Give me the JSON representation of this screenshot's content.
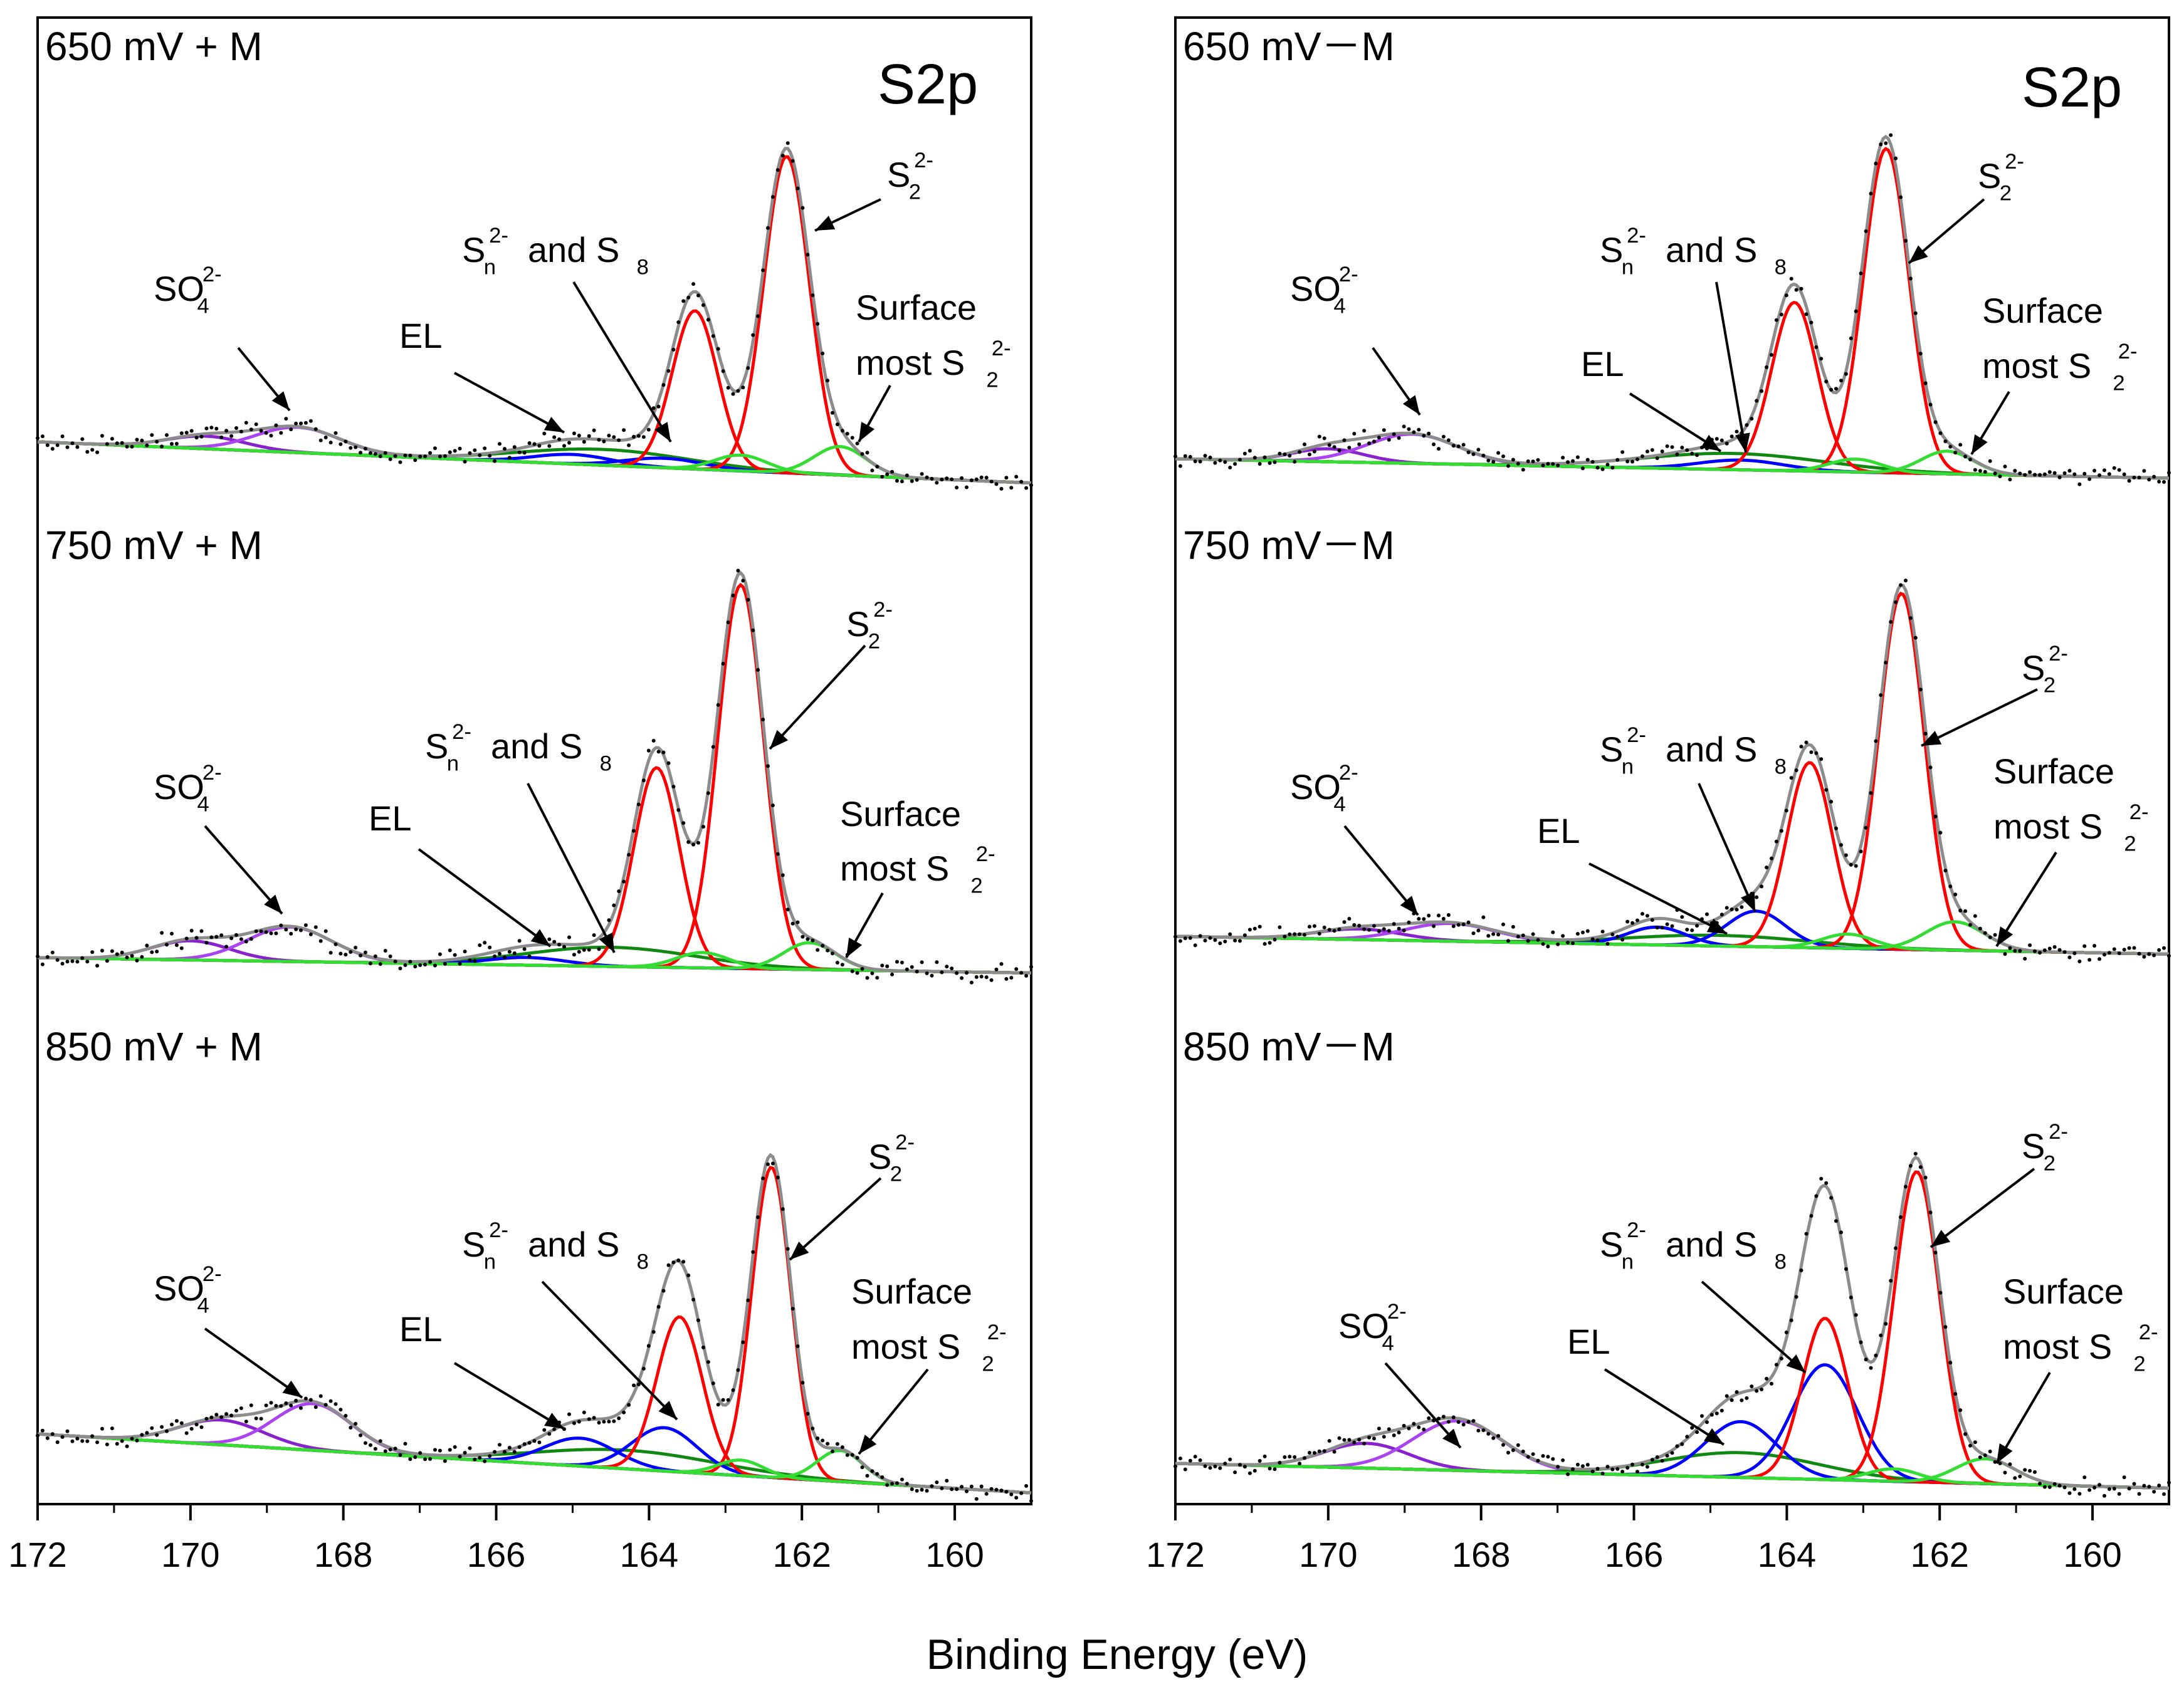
{
  "figure": {
    "xlabel": "Binding Energy (eV)"
  },
  "colors": {
    "envelope": "#8c8c8c",
    "s2": "#ff0000",
    "surface": "#33dd33",
    "sn": "#0000ff",
    "el": "#118811",
    "so4_a": "#8822cc",
    "so4_b": "#aa44ee",
    "sulfate_bg": "#9966bb",
    "background": "#2a6e2a",
    "dots": "#000000",
    "frame": "#000000"
  },
  "label_text": {
    "so4": "SO",
    "so4_sub": "4",
    "so4_sup": "2-",
    "el": "EL",
    "sn": "S",
    "sn_sub": "n",
    "sn_sup": "2-",
    "sn_and": "and S",
    "sn_and_sub": "8",
    "s2": "S",
    "s2_sub": "2",
    "s2_sup": "2-",
    "surface": "Surface",
    "most": "most S",
    "most_sub": "2",
    "most_sup": "2-"
  },
  "axis": {
    "ticks": [
      {
        "value": 172,
        "label": "172"
      },
      {
        "value": 170,
        "label": "170"
      },
      {
        "value": 168,
        "label": "168"
      },
      {
        "value": 166,
        "label": "166"
      },
      {
        "value": 164,
        "label": "164"
      },
      {
        "value": 162,
        "label": "162"
      },
      {
        "value": 160,
        "label": "160"
      }
    ]
  },
  "chart_data": [
    {
      "type": "line",
      "title": "650 mV + M",
      "tag": "S2p",
      "xlabel": "Binding Energy (eV)",
      "xlim": [
        172,
        159
      ],
      "background": {
        "left": 0.0,
        "right": -0.13
      },
      "series": [
        {
          "name": "SO4 2- (a)",
          "center": 169.8,
          "height": 0.04,
          "fwhm": 1.2,
          "color_key": "so4_a"
        },
        {
          "name": "SO4 2- (b)",
          "center": 168.6,
          "height": 0.08,
          "fwhm": 1.3,
          "color_key": "so4_b"
        },
        {
          "name": "EL",
          "center": 164.6,
          "height": 0.05,
          "fwhm": 2.6,
          "color_key": "el"
        },
        {
          "name": "Sn 2- and S8 (a)",
          "center": 165.0,
          "height": 0.03,
          "fwhm": 1.2,
          "color_key": "sn"
        },
        {
          "name": "Sn 2- and S8 (b)",
          "center": 163.8,
          "height": 0.03,
          "fwhm": 1.2,
          "color_key": "sn"
        },
        {
          "name": "S2 2- p3/2",
          "center": 162.2,
          "height": 1.0,
          "fwhm": 0.7,
          "color_key": "s2"
        },
        {
          "name": "S2 2- p1/2",
          "center": 163.4,
          "height": 0.5,
          "fwhm": 0.7,
          "color_key": "s2"
        },
        {
          "name": "Surface most S2 2- (a)",
          "center": 161.5,
          "height": 0.09,
          "fwhm": 0.8,
          "color_key": "surface"
        },
        {
          "name": "Surface most S2 2- (b)",
          "center": 162.8,
          "height": 0.05,
          "fwhm": 0.8,
          "color_key": "surface"
        }
      ]
    },
    {
      "type": "line",
      "title": "650 mV－M",
      "tag": "S2p",
      "xlabel": "Binding Energy (eV)",
      "xlim": [
        172,
        159
      ],
      "background": {
        "left": 0.0,
        "right": -0.06
      },
      "series": [
        {
          "name": "SO4 2- (a)",
          "center": 170.0,
          "height": 0.04,
          "fwhm": 1.1,
          "color_key": "so4_a"
        },
        {
          "name": "SO4 2- (b)",
          "center": 168.9,
          "height": 0.09,
          "fwhm": 1.4,
          "color_key": "so4_b"
        },
        {
          "name": "EL",
          "center": 164.7,
          "height": 0.05,
          "fwhm": 2.8,
          "color_key": "el"
        },
        {
          "name": "Sn 2- and S8",
          "center": 164.6,
          "height": 0.03,
          "fwhm": 1.3,
          "color_key": "sn"
        },
        {
          "name": "S2 2- p3/2",
          "center": 162.7,
          "height": 1.0,
          "fwhm": 0.7,
          "color_key": "s2"
        },
        {
          "name": "S2 2- p1/2",
          "center": 163.9,
          "height": 0.52,
          "fwhm": 0.7,
          "color_key": "s2"
        },
        {
          "name": "Surface most S2 2- (a)",
          "center": 161.9,
          "height": 0.07,
          "fwhm": 0.8,
          "color_key": "surface"
        },
        {
          "name": "Surface most S2 2- (b)",
          "center": 163.1,
          "height": 0.04,
          "fwhm": 0.8,
          "color_key": "surface"
        }
      ]
    },
    {
      "type": "line",
      "title": "750 mV + M",
      "tag": "",
      "xlabel": "Binding Energy (eV)",
      "xlim": [
        172,
        159
      ],
      "background": {
        "left": 0.0,
        "right": -0.04
      },
      "series": [
        {
          "name": "SO4 2- (a)",
          "center": 170.0,
          "height": 0.05,
          "fwhm": 1.2,
          "color_key": "so4_a"
        },
        {
          "name": "SO4 2- (b)",
          "center": 168.7,
          "height": 0.09,
          "fwhm": 1.3,
          "color_key": "so4_b"
        },
        {
          "name": "EL",
          "center": 164.5,
          "height": 0.05,
          "fwhm": 2.6,
          "color_key": "el"
        },
        {
          "name": "Sn 2- and S8",
          "center": 165.6,
          "height": 0.02,
          "fwhm": 1.2,
          "color_key": "sn"
        },
        {
          "name": "S2 2- p3/2",
          "center": 162.8,
          "height": 1.0,
          "fwhm": 0.7,
          "color_key": "s2"
        },
        {
          "name": "S2 2- p1/2",
          "center": 163.9,
          "height": 0.52,
          "fwhm": 0.7,
          "color_key": "s2"
        },
        {
          "name": "Surface most S2 2- (a)",
          "center": 161.9,
          "height": 0.07,
          "fwhm": 0.8,
          "color_key": "surface"
        },
        {
          "name": "Surface most S2 2- (b)",
          "center": 163.3,
          "height": 0.04,
          "fwhm": 0.8,
          "color_key": "surface"
        }
      ]
    },
    {
      "type": "line",
      "title": "750 mV－M",
      "tag": "",
      "xlabel": "Binding Energy (eV)",
      "xlim": [
        172,
        159
      ],
      "background": {
        "left": 0.0,
        "right": -0.05
      },
      "series": [
        {
          "name": "SO4 2- (a)",
          "center": 169.6,
          "height": 0.03,
          "fwhm": 1.3,
          "color_key": "so4_a"
        },
        {
          "name": "SO4 2- (b)",
          "center": 168.4,
          "height": 0.05,
          "fwhm": 1.4,
          "color_key": "so4_b"
        },
        {
          "name": "EL",
          "center": 164.9,
          "height": 0.03,
          "fwhm": 2.8,
          "color_key": "el"
        },
        {
          "name": "Sn 2- and S8 (a)",
          "center": 165.7,
          "height": 0.05,
          "fwhm": 0.9,
          "color_key": "sn"
        },
        {
          "name": "Sn 2- and S8 (b)",
          "center": 164.4,
          "height": 0.1,
          "fwhm": 0.9,
          "color_key": "sn"
        },
        {
          "name": "S2 2- p3/2",
          "center": 162.5,
          "height": 1.0,
          "fwhm": 0.7,
          "color_key": "s2"
        },
        {
          "name": "S2 2- p1/2",
          "center": 163.7,
          "height": 0.52,
          "fwhm": 0.7,
          "color_key": "s2"
        },
        {
          "name": "Surface most S2 2- (a)",
          "center": 161.8,
          "height": 0.08,
          "fwhm": 0.9,
          "color_key": "surface"
        },
        {
          "name": "Surface most S2 2- (b)",
          "center": 163.2,
          "height": 0.04,
          "fwhm": 0.8,
          "color_key": "surface"
        }
      ]
    },
    {
      "type": "line",
      "title": "850 mV + M",
      "tag": "",
      "xlabel": "Binding Energy (eV)",
      "xlim": [
        172,
        159
      ],
      "background": {
        "left": 0.0,
        "right": -0.19
      },
      "series": [
        {
          "name": "SO4 2- (a)",
          "center": 169.6,
          "height": 0.08,
          "fwhm": 1.3,
          "color_key": "so4_a"
        },
        {
          "name": "SO4 2- (b)",
          "center": 168.4,
          "height": 0.15,
          "fwhm": 1.2,
          "color_key": "so4_b"
        },
        {
          "name": "EL",
          "center": 164.3,
          "height": 0.06,
          "fwhm": 2.8,
          "color_key": "el"
        },
        {
          "name": "Sn 2- and S8 (a)",
          "center": 164.9,
          "height": 0.09,
          "fwhm": 1.1,
          "color_key": "sn"
        },
        {
          "name": "Sn 2- and S8 (b)",
          "center": 163.8,
          "height": 0.14,
          "fwhm": 1.0,
          "color_key": "sn"
        },
        {
          "name": "S2 2- p3/2",
          "center": 162.4,
          "height": 1.0,
          "fwhm": 0.6,
          "color_key": "s2"
        },
        {
          "name": "S2 2- p1/2",
          "center": 163.6,
          "height": 0.5,
          "fwhm": 0.7,
          "color_key": "s2"
        },
        {
          "name": "Surface most S2 2- (a)",
          "center": 161.5,
          "height": 0.1,
          "fwhm": 0.7,
          "color_key": "surface"
        },
        {
          "name": "Surface most S2 2- (b)",
          "center": 162.8,
          "height": 0.05,
          "fwhm": 0.7,
          "color_key": "surface"
        }
      ]
    },
    {
      "type": "line",
      "title": "850 mV－M",
      "tag": "",
      "xlabel": "Binding Energy (eV)",
      "xlim": [
        172,
        159
      ],
      "background": {
        "left": 0.0,
        "right": -0.08
      },
      "series": [
        {
          "name": "SO4 2- (a)",
          "center": 169.5,
          "height": 0.08,
          "fwhm": 1.3,
          "color_key": "so4_a"
        },
        {
          "name": "SO4 2- (b)",
          "center": 168.3,
          "height": 0.16,
          "fwhm": 1.4,
          "color_key": "so4_b"
        },
        {
          "name": "EL",
          "center": 164.6,
          "height": 0.08,
          "fwhm": 2.4,
          "color_key": "el"
        },
        {
          "name": "Sn 2- and S8 (a)",
          "center": 164.6,
          "height": 0.18,
          "fwhm": 1.1,
          "color_key": "sn"
        },
        {
          "name": "Sn 2- and S8 (b)",
          "center": 163.5,
          "height": 0.37,
          "fwhm": 1.0,
          "color_key": "sn"
        },
        {
          "name": "S2 2- p3/2",
          "center": 162.3,
          "height": 1.0,
          "fwhm": 0.7,
          "color_key": "s2"
        },
        {
          "name": "S2 2- p1/2",
          "center": 163.5,
          "height": 0.52,
          "fwhm": 0.7,
          "color_key": "s2"
        },
        {
          "name": "Surface most S2 2- (a)",
          "center": 161.4,
          "height": 0.08,
          "fwhm": 0.9,
          "color_key": "surface"
        },
        {
          "name": "Surface most S2 2- (b)",
          "center": 162.6,
          "height": 0.04,
          "fwhm": 0.8,
          "color_key": "surface"
        }
      ]
    }
  ]
}
